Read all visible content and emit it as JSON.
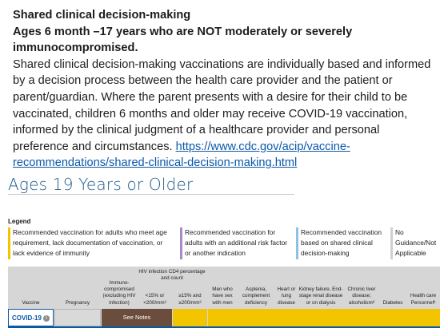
{
  "intro": {
    "title_line1": "Shared clinical decision-making",
    "title_line2": "Ages 6 month –17 years who are NOT moderately or severely immunocompromised.",
    "body": "Shared clinical decision-making vaccinations are individually based and informed by a decision process between the health care provider and the patient or parent/guardian. Where the parent presents with a desire for their child to be vaccinated, children 6 months and older may receive COVID-19 vaccination, informed by the clinical judgment of a healthcare provider and personal preference and circumstances.",
    "link": "https://www.cdc.gov/acip/vaccine-recommendations/shared-clinical-decision-making.html"
  },
  "section": {
    "heading": "Ages 19 Years or Older"
  },
  "legend": {
    "label": "Legend",
    "items": [
      {
        "text": "Recommended vaccination for adults who meet age requirement, lack documentation of vaccination, or lack evidence of immunity",
        "color": "#f2c500"
      },
      {
        "text": "Recommended vaccination for adults with an additional risk factor or another indication",
        "color": "#a98bc9"
      },
      {
        "text": "Recommended vaccination based on shared clinical decision-making",
        "color": "#8fc1e3"
      },
      {
        "text": "No Guidance/Not Applicable",
        "color": "#d0d0d0"
      }
    ]
  },
  "table": {
    "headers": {
      "vaccine": "Vaccine",
      "pregnancy": "Pregnancy",
      "immuno": "Immuno-compromised (excluding HIV infection)",
      "hiv_group": "HIV infection CD4 percentage and count",
      "hiv_low": "<15% or <200/mm³",
      "hiv_high": "≥15% and ≥200/mm³",
      "msm": "Men who have sex with men",
      "asplenia": "Asplenia, complement deficiency",
      "heart": "Heart or lung disease",
      "kidney": "Kidney failure, End-stage renal disease or on dialysis",
      "liver": "Chronic liver disease; alcoholismᵈ",
      "diabetes": "Diabetes",
      "hcp": "Health care Personnelᵇ"
    },
    "rows": [
      {
        "vaccine": "COVID-19",
        "info_icon": "i",
        "see_notes": "See Notes"
      }
    ]
  },
  "colors": {
    "link": "#0a58a8",
    "heading": "#1d5a8c",
    "yellow": "#f2c500",
    "brown": "#6b4d3d"
  }
}
